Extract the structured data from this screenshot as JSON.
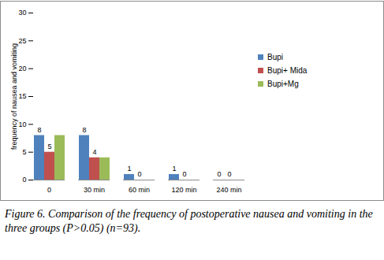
{
  "chart_data": {
    "type": "bar",
    "caption": "Figure 6. Comparison of the frequency of postoperative nausea and vomiting in the three groups (P>0.05) (n=93).",
    "y_label": "frequency of nausea and vomiting",
    "categories": [
      "0",
      "30 min",
      "60 min",
      "120 min",
      "240 min"
    ],
    "series": [
      {
        "name": "Bupi",
        "color": "#4f81bd",
        "values": [
          8,
          8,
          1,
          1,
          0
        ],
        "data_labels": true
      },
      {
        "name": "Bupi+ Mida",
        "color": "#c0504d",
        "values": [
          5,
          4,
          0,
          0,
          0
        ],
        "data_labels": true
      },
      {
        "name": "Bupi+Mg",
        "color": "#9bbb59",
        "values": [
          8,
          4,
          0,
          0,
          0
        ],
        "data_labels": false
      }
    ],
    "ylim": [
      0,
      30
    ],
    "yticks": [
      0,
      5,
      10,
      15,
      20,
      25,
      30
    ],
    "grid": false,
    "legend": "right"
  }
}
